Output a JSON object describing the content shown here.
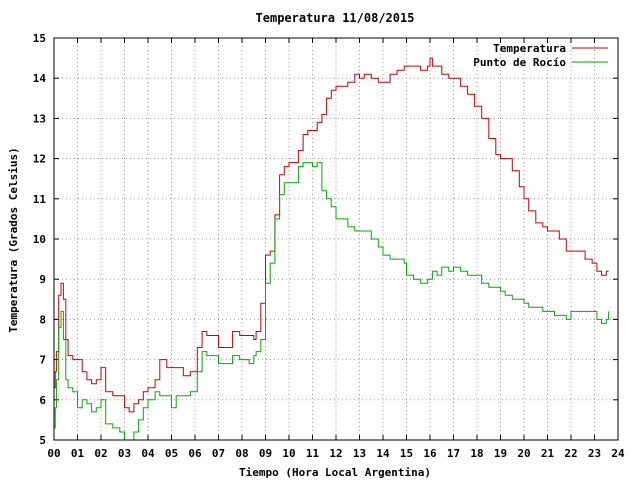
{
  "chart_data": {
    "type": "line",
    "title": "Temperatura 11/08/2015",
    "xlabel": "Tiempo (Hora Local Argentina)",
    "ylabel": "Temperatura (Grados Celsius)",
    "xlim": [
      0,
      24
    ],
    "ylim": [
      5,
      15
    ],
    "grid": true,
    "legend_position": "top-right",
    "x_ticks": [
      0,
      1,
      2,
      3,
      4,
      5,
      6,
      7,
      8,
      9,
      10,
      11,
      12,
      13,
      14,
      15,
      16,
      17,
      18,
      19,
      20,
      21,
      22,
      23,
      24
    ],
    "x_tick_labels": [
      "00",
      "01",
      "02",
      "03",
      "04",
      "05",
      "06",
      "07",
      "08",
      "09",
      "10",
      "11",
      "12",
      "13",
      "14",
      "15",
      "16",
      "17",
      "18",
      "19",
      "20",
      "21",
      "22",
      "23",
      "24"
    ],
    "y_ticks": [
      5,
      6,
      7,
      8,
      9,
      10,
      11,
      12,
      13,
      14,
      15
    ],
    "y_tick_labels": [
      "5",
      "6",
      "7",
      "8",
      "9",
      "10",
      "11",
      "12",
      "13",
      "14",
      "15"
    ],
    "series": [
      {
        "name": "Temperatura",
        "color": "#cc0000",
        "x": [
          0,
          0.05,
          0.1,
          0.2,
          0.3,
          0.4,
          0.5,
          0.6,
          0.8,
          1.0,
          1.2,
          1.4,
          1.6,
          1.8,
          2.0,
          2.2,
          2.5,
          2.8,
          3.0,
          3.2,
          3.4,
          3.6,
          3.8,
          4.0,
          4.2,
          4.3,
          4.5,
          4.8,
          5.0,
          5.2,
          5.5,
          5.8,
          6.0,
          6.1,
          6.3,
          6.5,
          7.0,
          7.3,
          7.6,
          7.9,
          8.1,
          8.3,
          8.5,
          8.6,
          8.8,
          9.0,
          9.2,
          9.4,
          9.6,
          9.8,
          10.0,
          10.4,
          10.6,
          10.8,
          11.0,
          11.2,
          11.4,
          11.6,
          11.8,
          12.0,
          12.2,
          12.5,
          12.8,
          13.0,
          13.2,
          13.5,
          13.8,
          14.0,
          14.3,
          14.6,
          14.9,
          15.0,
          15.3,
          15.6,
          15.9,
          16.0,
          16.1,
          16.3,
          16.5,
          16.8,
          17.0,
          17.3,
          17.6,
          17.9,
          18.2,
          18.5,
          18.8,
          19.0,
          19.2,
          19.5,
          19.8,
          20.0,
          20.2,
          20.5,
          20.8,
          21.0,
          21.3,
          21.5,
          21.8,
          22.0,
          22.3,
          22.6,
          22.9,
          23.1,
          23.3,
          23.5,
          23.6
        ],
        "y": [
          6.3,
          6.7,
          7.2,
          8.6,
          8.9,
          8.5,
          7.5,
          7.1,
          7.0,
          7.0,
          6.7,
          6.5,
          6.4,
          6.5,
          6.8,
          6.2,
          6.1,
          6.1,
          5.8,
          5.7,
          5.9,
          6.0,
          6.2,
          6.3,
          6.3,
          6.5,
          7.0,
          6.8,
          6.8,
          6.8,
          6.6,
          6.7,
          6.7,
          7.3,
          7.7,
          7.6,
          7.3,
          7.3,
          7.7,
          7.6,
          7.6,
          7.6,
          7.5,
          7.7,
          8.4,
          9.6,
          9.7,
          10.6,
          11.6,
          11.8,
          11.9,
          12.2,
          12.6,
          12.7,
          12.7,
          12.9,
          13.1,
          13.5,
          13.7,
          13.8,
          13.8,
          13.9,
          14.1,
          14.0,
          14.1,
          14.0,
          13.9,
          13.9,
          14.1,
          14.2,
          14.3,
          14.3,
          14.3,
          14.2,
          14.3,
          14.5,
          14.3,
          14.3,
          14.1,
          14.0,
          14.0,
          13.8,
          13.6,
          13.3,
          13.0,
          12.5,
          12.1,
          12.0,
          12.0,
          11.7,
          11.3,
          11.0,
          10.7,
          10.4,
          10.3,
          10.2,
          10.2,
          10.0,
          9.7,
          9.7,
          9.7,
          9.5,
          9.4,
          9.2,
          9.1,
          9.2,
          9.2
        ]
      },
      {
        "name": "Punto de Rocío",
        "color": "#00aa00",
        "x": [
          0,
          0.05,
          0.1,
          0.2,
          0.3,
          0.4,
          0.5,
          0.6,
          0.8,
          1.0,
          1.2,
          1.4,
          1.6,
          1.8,
          2.0,
          2.2,
          2.5,
          2.8,
          3.0,
          3.2,
          3.4,
          3.6,
          3.8,
          4.0,
          4.2,
          4.3,
          4.5,
          4.8,
          5.0,
          5.2,
          5.5,
          5.8,
          6.0,
          6.1,
          6.3,
          6.5,
          7.0,
          7.3,
          7.6,
          7.9,
          8.1,
          8.3,
          8.5,
          8.6,
          8.8,
          9.0,
          9.2,
          9.4,
          9.6,
          9.8,
          10.0,
          10.4,
          10.6,
          10.8,
          11.0,
          11.2,
          11.4,
          11.6,
          11.8,
          12.0,
          12.2,
          12.5,
          12.8,
          13.0,
          13.2,
          13.5,
          13.8,
          14.0,
          14.3,
          14.6,
          14.9,
          15.0,
          15.3,
          15.6,
          15.9,
          16.0,
          16.1,
          16.3,
          16.5,
          16.8,
          17.0,
          17.3,
          17.6,
          17.9,
          18.2,
          18.5,
          18.8,
          19.0,
          19.2,
          19.5,
          19.8,
          20.0,
          20.2,
          20.5,
          20.8,
          21.0,
          21.3,
          21.5,
          21.8,
          22.0,
          22.3,
          22.6,
          22.9,
          23.1,
          23.3,
          23.5,
          23.6
        ],
        "y": [
          5.3,
          5.8,
          6.5,
          7.8,
          8.2,
          7.5,
          6.5,
          6.3,
          6.2,
          5.8,
          6.0,
          5.9,
          5.7,
          5.8,
          6.0,
          5.4,
          5.3,
          5.2,
          5.0,
          5.0,
          5.2,
          5.5,
          5.8,
          6.0,
          6.0,
          6.2,
          6.1,
          6.1,
          5.8,
          6.1,
          6.1,
          6.2,
          6.2,
          6.7,
          7.2,
          7.1,
          6.9,
          6.9,
          7.1,
          7.0,
          7.0,
          6.9,
          7.1,
          7.2,
          7.5,
          8.9,
          9.4,
          10.5,
          11.1,
          11.4,
          11.4,
          11.8,
          11.9,
          11.9,
          11.8,
          11.9,
          11.2,
          11.0,
          10.8,
          10.5,
          10.5,
          10.3,
          10.2,
          10.2,
          10.2,
          10.0,
          9.8,
          9.6,
          9.5,
          9.5,
          9.4,
          9.1,
          9.0,
          8.9,
          9.0,
          9.0,
          9.2,
          9.1,
          9.3,
          9.2,
          9.3,
          9.2,
          9.1,
          9.1,
          8.9,
          8.8,
          8.8,
          8.7,
          8.6,
          8.5,
          8.5,
          8.4,
          8.3,
          8.3,
          8.2,
          8.2,
          8.1,
          8.1,
          8.0,
          8.2,
          8.2,
          8.2,
          8.2,
          8.0,
          7.9,
          8.0,
          8.2
        ]
      }
    ]
  }
}
